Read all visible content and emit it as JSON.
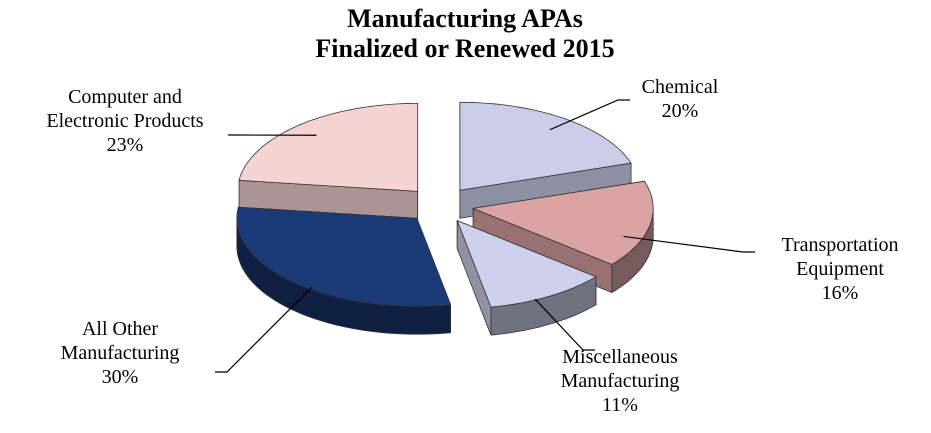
{
  "chart_data": {
    "type": "pie",
    "title": "Manufacturing APAs\nFinalized or Renewed 2015",
    "categories": [
      "Chemical",
      "Transportation Equipment",
      "Miscellaneous Manufacturing",
      "All Other Manufacturing",
      "Computer and Electronic Products"
    ],
    "values": [
      20,
      16,
      11,
      30,
      23
    ],
    "value_labels": [
      "20%",
      "16%",
      "11%",
      "30%",
      "23%"
    ],
    "colors": [
      "#c9cde8",
      "#d9a3a3",
      "#cdd0ea",
      "#1b3a78",
      "#f6d3d3"
    ]
  }
}
